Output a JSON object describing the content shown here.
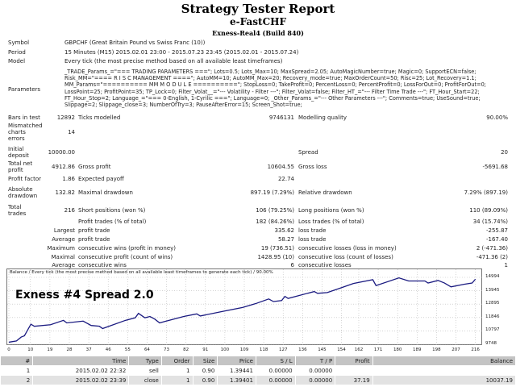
{
  "header": {
    "title": "Strategy Tester Report",
    "ea": "e-FastCHF",
    "server": "Exness-Real4 (Build 840)"
  },
  "info": {
    "symbol_label": "Symbol",
    "symbol": "GBPCHF (Great Britain Pound vs Swiss Franc (10))",
    "period_label": "Period",
    "period": "15 Minutes (M15) 2015.02.01 23:00 - 2015.07.23 23:45 (2015.02.01 - 2015.07.24)",
    "model_label": "Model",
    "model": "Every tick (the most precise method based on all available least timeframes)",
    "parameters_label": "Parameters",
    "parameters": "_TRADE_Params_=\"=== TRADING PARAMETERS ===\"; Lots=0.5; Lots_Max=10; MaxSpread=2.05; AutoMagicNumber=true; Magic=0; SupportECN=false; Risk_MM=\"==== R I S C MANAGEMENT ====\"; AutoMM=10; AutoMM_Max=20; Recovery_mode=true; MaxOrderCount=50; Risc=25; Lot_Recovery=1.1; MM_Params=\"========== MM M O D U L E ==========\"; StopLoss=0; TakeProfit=0; PercentLoss=0; PercentProfit=0; LossForOut=0; ProfitForOut=0; LossPoint=25; ProfitPoint=35; TP_Lock=0; Filter_Volat__=\"--- Volatility - Filter ---\"; Filter_Volat=false; Filter_HT_=\"--- Filter Time Trade ---\"; FT_Hour_Start=22; FT_Hour_Stop=2; Language_=\"=== 0-English, 1-Cyrilic ===\"; Language=0; _Other_Params_=\"--- Other Parameters ---\"; Comments=true; UseSound=true; Slippage=2; Slippage_close=3; NumberOfTry=3; PauseAfterError=15; Screen_Shot=true;"
  },
  "stats": {
    "bars_label": "Bars in test",
    "bars": "12892",
    "ticks_label": "Ticks modelled",
    "ticks": "9746131",
    "quality_label": "Modelling quality",
    "quality": "90.00%",
    "mismatch_label": "Mismatched charts errors",
    "mismatch": "14",
    "deposit_label": "Initial deposit",
    "deposit": "10000.00",
    "spread_label": "Spread",
    "spread": "20",
    "net_label": "Total net profit",
    "net": "4912.86",
    "gp_label": "Gross profit",
    "gp": "10604.55",
    "gl_label": "Gross loss",
    "gl": "-5691.68",
    "pf_label": "Profit factor",
    "pf": "1.86",
    "ep_label": "Expected payoff",
    "ep": "22.74",
    "ad_label": "Absolute drawdown",
    "ad": "132.82",
    "md_label": "Maximal drawdown",
    "md": "897.19 (7.29%)",
    "rd_label": "Relative drawdown",
    "rd": "7.29% (897.19)",
    "tt_label": "Total trades",
    "tt": "216",
    "sp_label": "Short positions (won %)",
    "sp": "106 (79.25%)",
    "lp_label": "Long positions (won %)",
    "lp": "110 (89.09%)",
    "pt_label": "Profit trades (% of total)",
    "pt": "182 (84.26%)",
    "lt_label": "Loss trades (% of total)",
    "lt": "34 (15.74%)",
    "largest": "Largest",
    "lpt_label": "profit trade",
    "lpt": "335.62",
    "llt_label": "loss trade",
    "llt": "-255.87",
    "average": "Average",
    "apt_label": "profit trade",
    "apt": "58.27",
    "alt_label": "loss trade",
    "alt": "-167.40",
    "maximum": "Maximum",
    "mcw_label": "consecutive wins (profit in money)",
    "mcw": "19 (736.51)",
    "mcl_label": "consecutive losses (loss in money)",
    "mcl": "2 (-471.36)",
    "maximal": "Maximal",
    "mcp_label": "consecutive profit (count of wins)",
    "mcp": "1428.95 (10)",
    "mclc_label": "consecutive loss (count of losses)",
    "mclc": "-471.36 (2)",
    "average2": "Average",
    "acw_label": "consecutive wins",
    "acw": "6",
    "acl_label": "consecutive losses",
    "acl": "1"
  },
  "chart_data": {
    "type": "line",
    "title": "Balance / Every tick (the most precise method based on all available least timeframes to generate each tick) / 90.00%",
    "overlay": "Exness #4  Spread 2.0",
    "x_ticks": [
      "0",
      "10",
      "19",
      "28",
      "37",
      "46",
      "55",
      "64",
      "73",
      "82",
      "91",
      "100",
      "109",
      "118",
      "127",
      "136",
      "145",
      "154",
      "162",
      "171",
      "180",
      "189",
      "198",
      "207",
      "216"
    ],
    "y_ticks": [
      "14994",
      "13945",
      "12895",
      "11846",
      "10797",
      "9748"
    ],
    "xlim": [
      0,
      218
    ],
    "ylim": [
      9748,
      14994
    ],
    "color": "#1a1a80",
    "series": [
      {
        "name": "Balance",
        "x": [
          0,
          3.5,
          5.7,
          7.2,
          10.2,
          11.8,
          19.3,
          25.3,
          26.8,
          34.4,
          38.1,
          41.9,
          43.4,
          46.4,
          54,
          58.5,
          60,
          63,
          65.3,
          67.5,
          69.8,
          72,
          81,
          87,
          88.6,
          99.2,
          108.2,
          114.3,
          120.3,
          122.5,
          126.3,
          127.8,
          129.3,
          141.4,
          142.9,
          147.4,
          153.4,
          159.5,
          168.5,
          170,
          180.6,
          185.1,
          192.6,
          194.1,
          198.7,
          201.7,
          204.7,
          210.7,
          214.5,
          216
        ],
        "y": [
          9909,
          10010,
          10313,
          10414,
          11322,
          11160,
          11281,
          11624,
          11423,
          11564,
          11221,
          11160,
          10979,
          11160,
          11624,
          11826,
          12169,
          11826,
          11927,
          11725,
          11423,
          11524,
          11927,
          12129,
          11967,
          12331,
          12633,
          12936,
          13299,
          13097,
          13178,
          13501,
          13339,
          13884,
          13743,
          13803,
          14147,
          14510,
          14812,
          14348,
          14953,
          14711,
          14711,
          14550,
          14752,
          14550,
          14247,
          14449,
          14550,
          14853
        ]
      }
    ]
  },
  "trades": {
    "headers": [
      "#",
      "Time",
      "Type",
      "Order",
      "Size",
      "Price",
      "S / L",
      "T / P",
      "Profit",
      "Balance"
    ],
    "rows": [
      [
        "1",
        "2015.02.02 22:32",
        "sell",
        "1",
        "0.90",
        "1.39441",
        "0.00000",
        "0.00000",
        "",
        ""
      ],
      [
        "2",
        "2015.02.02 23:39",
        "close",
        "1",
        "0.90",
        "1.39401",
        "0.00000",
        "0.00000",
        "37.19",
        "10037.19"
      ]
    ]
  }
}
